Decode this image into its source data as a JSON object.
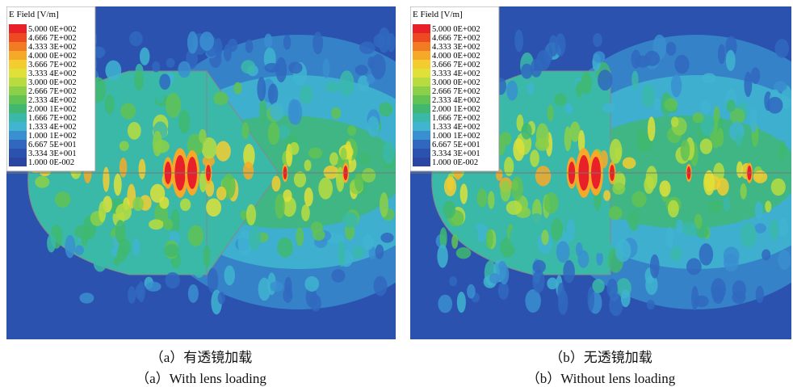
{
  "panels": [
    {
      "legend": {
        "title": "E Field [V/m]",
        "labels": [
          "5.000 0E+002",
          "4.666 7E+002",
          "4.333 3E+002",
          "4.000 0E+002",
          "3.666 7E+002",
          "3.333 4E+002",
          "3.000 0E+002",
          "2.666 7E+002",
          "2.333 4E+002",
          "2.000 1E+002",
          "1.666 7E+002",
          "1.333 4E+002",
          "1.000 1E+002",
          "6.667 5E+001",
          "3.334 3E+001",
          "1.000 0E-002"
        ],
        "colors": [
          "#e8202a",
          "#ee4a22",
          "#f27a22",
          "#f6a928",
          "#f4cc30",
          "#dfe03a",
          "#b8dc40",
          "#8ccf48",
          "#62c254",
          "#40b870",
          "#3ab8a8",
          "#40b4d0",
          "#3a8fd0",
          "#3068c0",
          "#2c52b0",
          "#2a46a2"
        ]
      },
      "caption_cn": "（a）有透镜加载",
      "caption_en": "（a）With lens loading"
    },
    {
      "legend": {
        "title": "E Field [V/m]",
        "labels": [
          "5.000 0E+002",
          "4.666 7E+002",
          "4.333 3E+002",
          "4.000 0E+002",
          "3.666 7E+002",
          "3.333 4E+002",
          "3.000 0E+002",
          "2.666 7E+002",
          "2.333 4E+002",
          "2.000 1E+002",
          "1.666 7E+002",
          "1.333 4E+002",
          "1.000 1E+002",
          "6.667 5E+001",
          "3.334 3E+001",
          "1.000 0E-002"
        ],
        "colors": [
          "#e8202a",
          "#ee4a22",
          "#f27a22",
          "#f6a928",
          "#f4cc30",
          "#dfe03a",
          "#b8dc40",
          "#8ccf48",
          "#62c254",
          "#40b870",
          "#3ab8a8",
          "#40b4d0",
          "#3a8fd0",
          "#3068c0",
          "#2c52b0",
          "#2a46a2"
        ]
      },
      "caption_cn": "（b）无透镜加载",
      "caption_en": "（b）Without lens loading"
    }
  ]
}
